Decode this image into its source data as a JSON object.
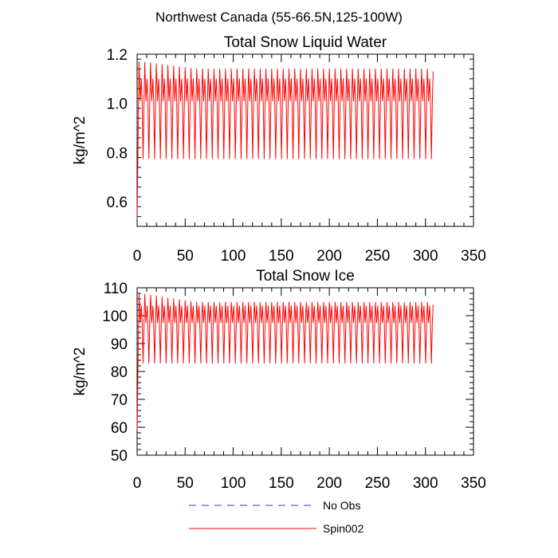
{
  "page_title": "Northwest Canada (55-66.5N,125-100W)",
  "legend": [
    {
      "label": "No Obs",
      "color": "#3333cc",
      "style": "dashed"
    },
    {
      "label": "Spin002",
      "color": "#ff0000",
      "style": "solid"
    }
  ],
  "chart_data": [
    {
      "type": "line",
      "title": "Total Snow Liquid Water",
      "xlabel": "",
      "ylabel": "kg/m^2",
      "xlim": [
        0,
        350
      ],
      "ylim": [
        0.5,
        1.2
      ],
      "xticks": [
        0,
        50,
        100,
        150,
        200,
        250,
        300,
        350
      ],
      "yticks": [
        0.6,
        0.8,
        1.0,
        1.2
      ],
      "ytick_labels": [
        "0.6",
        "0.8",
        "1.0",
        "1.2"
      ],
      "grid": false,
      "series": [
        {
          "name": "Spin002",
          "color": "#ff0000",
          "cycle_period": 6,
          "n_cycles": 51,
          "start": 0.53,
          "first_peak": 1.17,
          "steady_peak": 1.14,
          "secondary_peak": 1.1,
          "mid_dip": 1.01,
          "trough": 0.775,
          "end": 1.13
        }
      ]
    },
    {
      "type": "line",
      "title": "Total Snow Ice",
      "xlabel": "",
      "ylabel": "kg/m^2",
      "xlim": [
        0,
        350
      ],
      "ylim": [
        50,
        110
      ],
      "xticks": [
        0,
        50,
        100,
        150,
        200,
        250,
        300,
        350
      ],
      "yticks": [
        50,
        60,
        70,
        80,
        90,
        100,
        110
      ],
      "ytick_labels": [
        "50",
        "60",
        "70",
        "80",
        "90",
        "100",
        "110"
      ],
      "grid": false,
      "series": [
        {
          "name": "Spin002",
          "color": "#ff0000",
          "cycle_period": 6,
          "n_cycles": 51,
          "start": 59,
          "first_peak": 108,
          "steady_peak": 104.8,
          "secondary_peak": 103.5,
          "mid_dip": 97.5,
          "trough": 83,
          "end": 104
        }
      ]
    }
  ]
}
